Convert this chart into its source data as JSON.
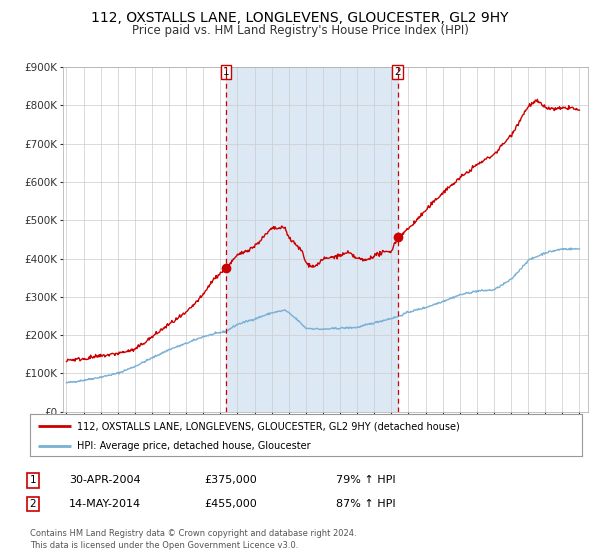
{
  "title": "112, OXSTALLS LANE, LONGLEVENS, GLOUCESTER, GL2 9HY",
  "subtitle": "Price paid vs. HM Land Registry's House Price Index (HPI)",
  "title_fontsize": 10,
  "subtitle_fontsize": 8.5,
  "background_color": "#ffffff",
  "plot_bg_color": "#ffffff",
  "grid_color": "#cccccc",
  "shaded_region": [
    2004.33,
    2014.37
  ],
  "shaded_color": "#dce9f5",
  "marker1_x": 2004.33,
  "marker1_y": 375000,
  "marker2_x": 2014.37,
  "marker2_y": 455000,
  "vline_color": "#cc0000",
  "marker_color": "#cc0000",
  "red_line_color": "#cc0000",
  "blue_line_color": "#7ab0d4",
  "ylim": [
    0,
    900000
  ],
  "yticks": [
    0,
    100000,
    200000,
    300000,
    400000,
    500000,
    600000,
    700000,
    800000,
    900000
  ],
  "xlim": [
    1994.8,
    2025.5
  ],
  "footer_text1": "Contains HM Land Registry data © Crown copyright and database right 2024.",
  "footer_text2": "This data is licensed under the Open Government Licence v3.0.",
  "legend_line1": "112, OXSTALLS LANE, LONGLEVENS, GLOUCESTER, GL2 9HY (detached house)",
  "legend_line2": "HPI: Average price, detached house, Gloucester",
  "table_rows": [
    {
      "num": "1",
      "date": "30-APR-2004",
      "price": "£375,000",
      "hpi": "79% ↑ HPI"
    },
    {
      "num": "2",
      "date": "14-MAY-2014",
      "price": "£455,000",
      "hpi": "87% ↑ HPI"
    }
  ]
}
